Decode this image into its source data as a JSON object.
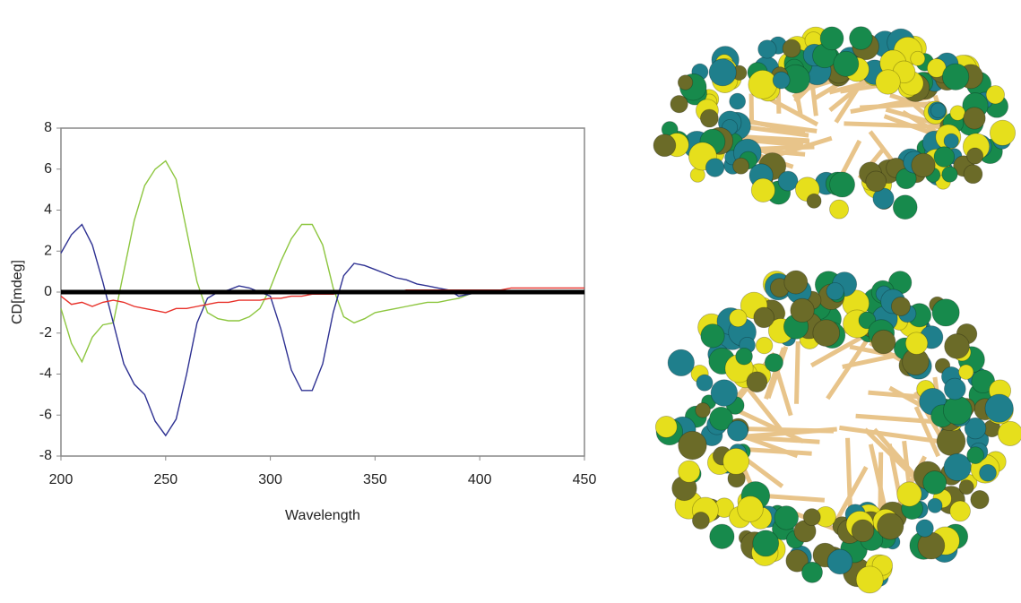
{
  "chart_data": {
    "type": "line",
    "xlabel": "Wavelength",
    "ylabel": "CD[mdeg]",
    "x": [
      200,
      205,
      210,
      215,
      220,
      225,
      230,
      235,
      240,
      245,
      250,
      255,
      260,
      265,
      270,
      275,
      280,
      285,
      290,
      295,
      300,
      305,
      310,
      315,
      320,
      325,
      330,
      335,
      340,
      345,
      350,
      355,
      360,
      365,
      370,
      375,
      380,
      385,
      390,
      395,
      400,
      405,
      410,
      415,
      420,
      425,
      430,
      435,
      440,
      445,
      450
    ],
    "series": [
      {
        "color": "#8dc63f",
        "values": [
          -0.8,
          -2.5,
          -3.4,
          -2.2,
          -1.6,
          -1.5,
          1,
          3.5,
          5.2,
          6,
          6.4,
          5.5,
          3,
          0.5,
          -1,
          -1.3,
          -1.4,
          -1.4,
          -1.2,
          -0.8,
          0.2,
          1.5,
          2.6,
          3.3,
          3.3,
          2.3,
          0.2,
          -1.2,
          -1.5,
          -1.3,
          -1,
          -0.9,
          -0.8,
          -0.7,
          -0.6,
          -0.5,
          -0.5,
          -0.4,
          -0.3,
          -0.1,
          0,
          0,
          0,
          0,
          0,
          0,
          0,
          0,
          0,
          0,
          0
        ]
      },
      {
        "color": "#2e3192",
        "values": [
          1.9,
          2.8,
          3.3,
          2.3,
          0.5,
          -1.5,
          -3.5,
          -4.5,
          -5,
          -6.3,
          -7,
          -6.2,
          -4,
          -1.5,
          -0.3,
          0,
          0.1,
          0.3,
          0.2,
          0,
          -0.2,
          -1.8,
          -3.8,
          -4.8,
          -4.8,
          -3.5,
          -1,
          0.8,
          1.4,
          1.3,
          1.1,
          0.9,
          0.7,
          0.6,
          0.4,
          0.3,
          0.2,
          0.1,
          -0.2,
          -0.1,
          0,
          0,
          0,
          0,
          0,
          0,
          0,
          0,
          0,
          0,
          0
        ]
      },
      {
        "color": "#e8312a",
        "values": [
          -0.2,
          -0.6,
          -0.5,
          -0.7,
          -0.5,
          -0.4,
          -0.5,
          -0.7,
          -0.8,
          -0.9,
          -1,
          -0.8,
          -0.8,
          -0.7,
          -0.6,
          -0.5,
          -0.5,
          -0.4,
          -0.4,
          -0.4,
          -0.3,
          -0.3,
          -0.2,
          -0.2,
          -0.1,
          -0.1,
          -0.1,
          0,
          0,
          0,
          0,
          0,
          0,
          0.1,
          0.1,
          0.1,
          0.1,
          0.1,
          0.1,
          0.1,
          0.1,
          0.1,
          0.1,
          0.2,
          0.2,
          0.2,
          0.2,
          0.2,
          0.2,
          0.2,
          0.2
        ]
      },
      {
        "color": "#000000",
        "values": [
          0,
          0,
          0,
          0,
          0,
          0,
          0,
          0,
          0,
          0,
          0,
          0,
          0,
          0,
          0,
          0,
          0,
          0,
          0,
          0,
          0,
          0,
          0,
          0,
          0,
          0,
          0,
          0,
          0,
          0,
          0,
          0,
          0,
          0,
          0,
          0,
          0,
          0,
          0,
          0,
          0,
          0,
          0,
          0,
          0,
          0,
          0,
          0,
          0,
          0,
          0
        ]
      }
    ],
    "xlim": [
      200,
      450
    ],
    "xticks": [
      200,
      250,
      300,
      350,
      400,
      450
    ],
    "ylim": [
      -8,
      8
    ],
    "yticks": [
      -8,
      -6,
      -4,
      -2,
      0,
      2,
      4,
      6,
      8
    ]
  }
}
